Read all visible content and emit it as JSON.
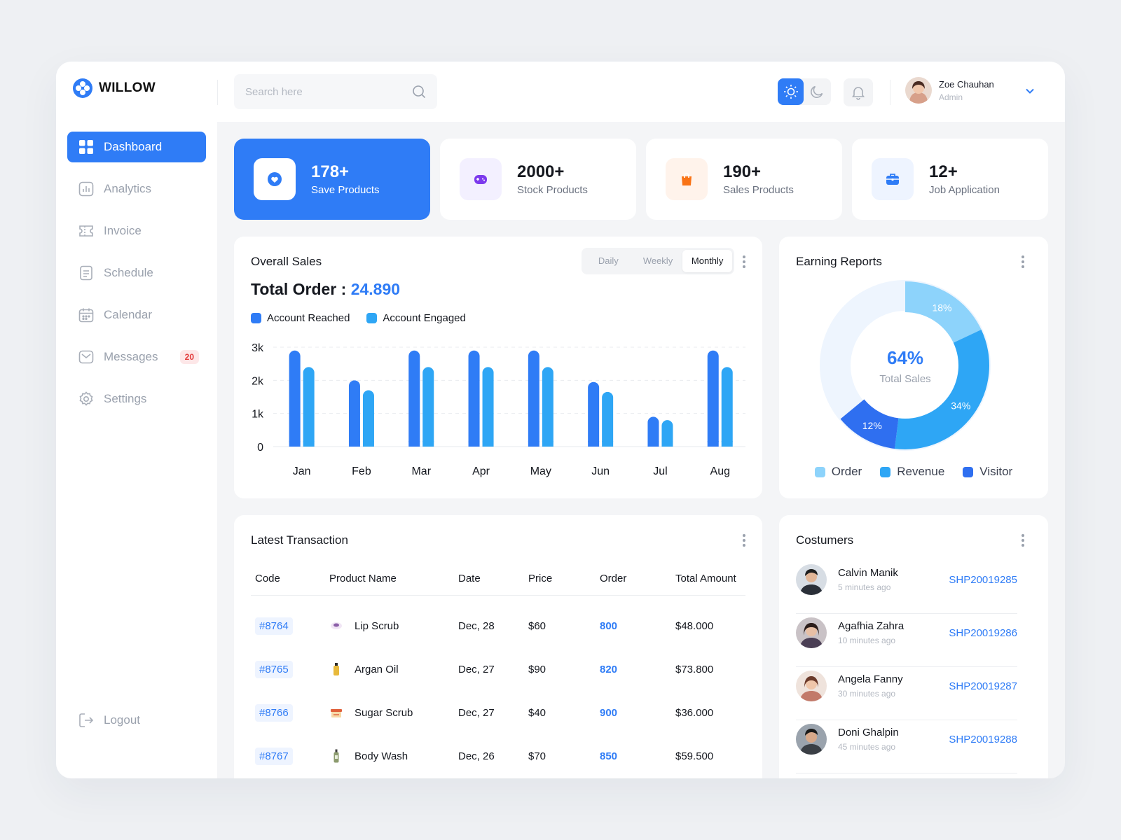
{
  "brand": {
    "name": "WILLOW"
  },
  "search": {
    "placeholder": "Search here"
  },
  "user": {
    "name": "Zoe Chauhan",
    "role": "Admin"
  },
  "sidebar": {
    "items": [
      {
        "label": "Dashboard",
        "icon": "dashboard-icon",
        "active": true
      },
      {
        "label": "Analytics",
        "icon": "analytics-icon"
      },
      {
        "label": "Invoice",
        "icon": "invoice-icon"
      },
      {
        "label": "Schedule",
        "icon": "schedule-icon"
      },
      {
        "label": "Calendar",
        "icon": "calendar-icon"
      },
      {
        "label": "Messages",
        "icon": "messages-icon",
        "badge": "20"
      },
      {
        "label": "Settings",
        "icon": "settings-icon"
      }
    ],
    "logout": "Logout"
  },
  "stats": [
    {
      "value": "178+",
      "label": "Save Products",
      "icon": "heart-icon",
      "color": "#2f7cf6"
    },
    {
      "value": "2000+",
      "label": "Stock Products",
      "icon": "gamepad-icon",
      "color": "#7c3aed"
    },
    {
      "value": "190+",
      "label": "Sales Products",
      "icon": "bag-icon",
      "color": "#f97316"
    },
    {
      "value": "12+",
      "label": "Job Application",
      "icon": "briefcase-icon",
      "color": "#2f7cf6"
    }
  ],
  "sales": {
    "title": "Overall Sales",
    "tabs": [
      "Daily",
      "Weekly",
      "Monthly"
    ],
    "active_tab": "Monthly",
    "total_label": "Total Order :",
    "total_value": "24.890"
  },
  "chart_data": [
    {
      "type": "bar",
      "categories": [
        "Jan",
        "Feb",
        "Mar",
        "Apr",
        "May",
        "Jun",
        "Jul",
        "Aug"
      ],
      "series": [
        {
          "name": "Account Reached",
          "color": "#2f7cf6",
          "values": [
            2900,
            2000,
            2900,
            2900,
            2900,
            1950,
            900,
            2900
          ]
        },
        {
          "name": "Account Engaged",
          "color": "#2ea6f5",
          "values": [
            2400,
            1700,
            2400,
            2400,
            2400,
            1650,
            800,
            2400
          ]
        }
      ],
      "yticks": [
        "0",
        "1k",
        "2k",
        "3k"
      ],
      "ylim": [
        0,
        3000
      ],
      "grid": true
    },
    {
      "type": "pie",
      "title": "Earning Reports",
      "center_value": "64%",
      "center_label": "Total Sales",
      "slices": [
        {
          "name": "Order",
          "value": 18,
          "label": "18%",
          "color": "#8dd3fb"
        },
        {
          "name": "Revenue",
          "value": 34,
          "label": "34%",
          "color": "#2ea6f5"
        },
        {
          "name": "Visitor",
          "value": 12,
          "label": "12%",
          "color": "#2f6ff0"
        }
      ],
      "remainder_color": "#eef5fe"
    }
  ],
  "transactions": {
    "title": "Latest Transaction",
    "columns": [
      "Code",
      "Product Name",
      "Date",
      "Price",
      "Order",
      "Total Amount"
    ],
    "rows": [
      {
        "code": "#8764",
        "product": "Lip Scrub",
        "date": "Dec, 28",
        "price": "$60",
        "order": "800",
        "total": "$48.000"
      },
      {
        "code": "#8765",
        "product": "Argan Oil",
        "date": "Dec, 27",
        "price": "$90",
        "order": "820",
        "total": "$73.800"
      },
      {
        "code": "#8766",
        "product": "Sugar Scrub",
        "date": "Dec, 27",
        "price": "$40",
        "order": "900",
        "total": "$36.000"
      },
      {
        "code": "#8767",
        "product": "Body Wash",
        "date": "Dec, 26",
        "price": "$70",
        "order": "850",
        "total": "$59.500"
      }
    ]
  },
  "customers": {
    "title": "Costumers",
    "items": [
      {
        "name": "Calvin Manik",
        "time": "5 minutes ago",
        "id": "SHP20019285"
      },
      {
        "name": "Agafhia Zahra",
        "time": "10 minutes ago",
        "id": "SHP20019286"
      },
      {
        "name": "Angela Fanny",
        "time": "30 minutes ago",
        "id": "SHP20019287"
      },
      {
        "name": "Doni Ghalpin",
        "time": "45 minutes ago",
        "id": "SHP20019288"
      }
    ]
  }
}
